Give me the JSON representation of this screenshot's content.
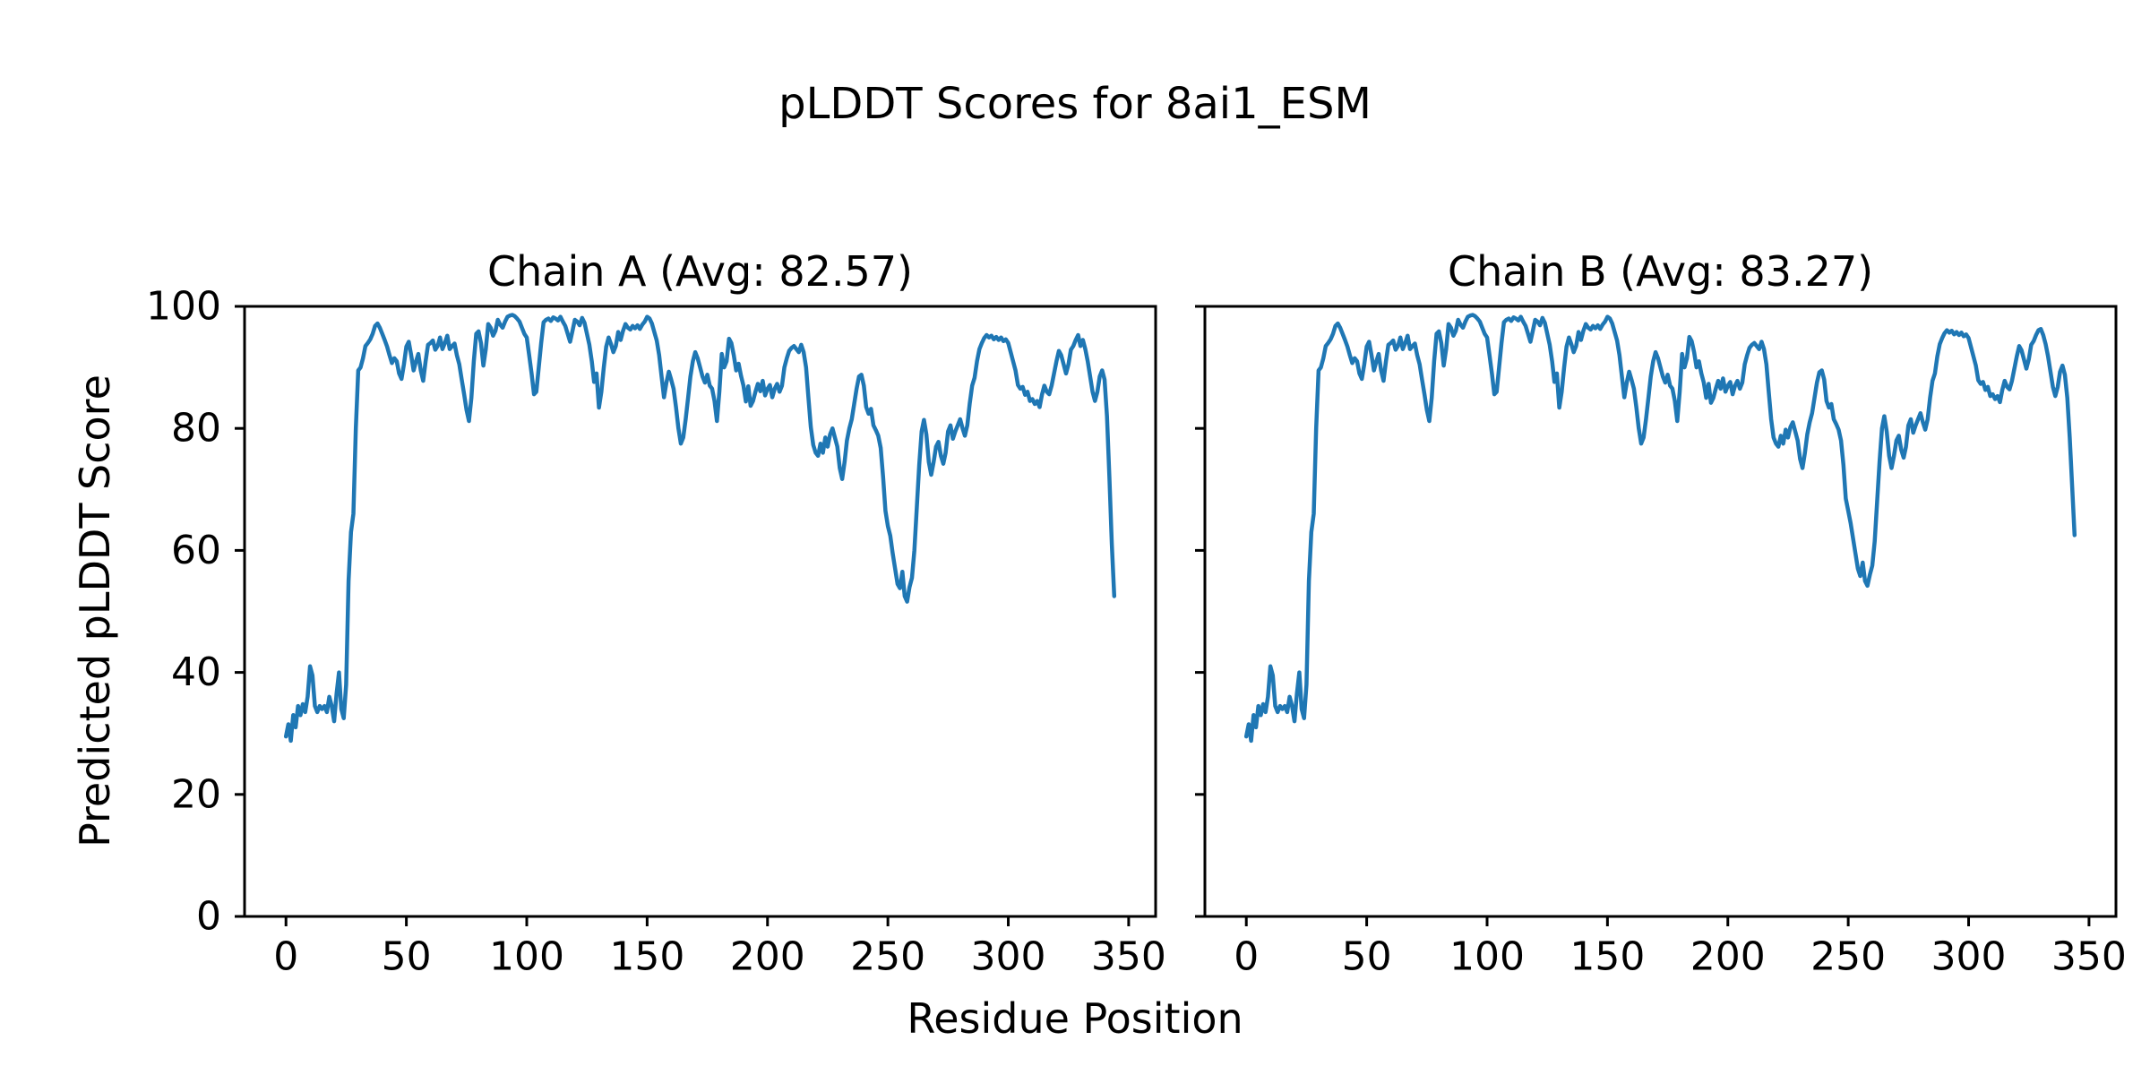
{
  "figure": {
    "suptitle": "pLDDT Scores for 8ai1_ESM",
    "xlabel": "Residue Position",
    "ylabel": "Predicted pLDDT Score",
    "colors": {
      "line": "#1f77b4",
      "text": "#000000",
      "spine": "#000000",
      "background": "#ffffff"
    }
  },
  "chart_data": {
    "type": "line",
    "title": "pLDDT Scores for 8ai1_ESM",
    "xlabel": "Residue Position",
    "ylabel": "Predicted pLDDT Score",
    "xlim": [
      -17.2,
      361.2
    ],
    "ylim": [
      0,
      100
    ],
    "xticks": [
      0,
      50,
      100,
      150,
      200,
      250,
      300,
      350
    ],
    "yticks": [
      0,
      20,
      40,
      60,
      80,
      100
    ],
    "grid": false,
    "legend": "none",
    "line_color": "#1f77b4",
    "subplots": [
      {
        "title": "Chain A (Avg: 82.57)",
        "chain": "A",
        "avg": 82.57,
        "x_start": 0,
        "values": [
          29.5,
          31.5,
          28.8,
          33,
          31,
          34.5,
          33,
          34.8,
          33.5,
          36,
          41,
          39.5,
          34.5,
          33.5,
          34.5,
          34,
          34.5,
          33.5,
          36,
          34.5,
          32,
          36.5,
          40,
          34,
          32.5,
          38,
          55,
          63,
          66,
          80,
          89.5,
          90,
          91.5,
          93.5,
          94,
          94.6,
          95.5,
          96.8,
          97.2,
          96.5,
          95.5,
          94.5,
          93.4,
          92,
          90.7,
          91.5,
          91,
          89,
          88.1,
          90.5,
          93.4,
          94.2,
          92,
          89.5,
          91,
          92.2,
          89.5,
          87.8,
          91,
          93.7,
          94,
          94.4,
          92.9,
          93.5,
          94.9,
          93,
          94,
          95.2,
          93,
          93.5,
          93.9,
          92,
          90.5,
          88,
          85.6,
          83,
          81.2,
          85,
          91,
          95.5,
          95.9,
          94,
          90.3,
          93,
          97.1,
          96.5,
          95.2,
          96,
          97.8,
          97,
          96.5,
          97.5,
          98.3,
          98.5,
          98.6,
          98.4,
          98,
          97.5,
          96.5,
          95.5,
          94.9,
          92,
          89,
          85.6,
          86,
          90,
          94,
          97.4,
          97.8,
          98,
          97.6,
          98.2,
          98,
          97.7,
          98.3,
          97.5,
          96.8,
          95.5,
          94.2,
          96,
          97.8,
          97.5,
          96.9,
          98.1,
          97.3,
          95.5,
          93.7,
          91,
          87.6,
          89,
          83.4,
          86,
          90,
          93.4,
          94.9,
          93.8,
          92.5,
          93.5,
          95.8,
          94.5,
          96,
          97.1,
          96.5,
          96.2,
          96.8,
          96.4,
          96.9,
          96.3,
          97,
          97.5,
          98.3,
          98,
          97.2,
          95.8,
          94.4,
          92,
          88.5,
          85.1,
          87.5,
          89.3,
          88,
          86.5,
          83.5,
          80,
          77.5,
          78.5,
          81.5,
          85,
          88.5,
          91,
          92.5,
          91.5,
          90,
          88.5,
          87.5,
          88.8,
          87,
          86.5,
          84.5,
          81.2,
          86,
          92.2,
          90,
          91,
          94.7,
          94,
          92,
          89.5,
          90.6,
          88.6,
          87,
          84.4,
          86.9,
          83.7,
          84.5,
          86,
          87.3,
          86.1,
          87.8,
          85.4,
          86.5,
          87.1,
          85.1,
          86.5,
          87.3,
          86,
          87,
          90,
          91.5,
          92.7,
          93.2,
          93.5,
          93,
          92.5,
          93.7,
          92.5,
          90,
          85.1,
          80.2,
          77.3,
          76,
          75.5,
          77.5,
          76,
          78.5,
          77,
          79,
          80,
          78.5,
          77,
          73.5,
          71.7,
          74.5,
          78,
          80,
          81.5,
          84,
          86.5,
          88.5,
          88.8,
          87,
          83.5,
          82.4,
          83.2,
          80.5,
          79.7,
          78.8,
          76.8,
          72,
          66.5,
          64,
          62.4,
          59.5,
          57,
          54.5,
          53.8,
          56.5,
          52.5,
          51.6,
          54,
          55.5,
          60,
          67,
          74,
          79.5,
          81.4,
          79,
          74.5,
          72.4,
          74.5,
          77,
          77.8,
          75.5,
          74.2,
          76,
          79.5,
          80.5,
          78.3,
          79.5,
          80.5,
          81.5,
          80,
          78.8,
          80.5,
          84.1,
          87,
          88.3,
          91,
          93,
          94,
          94.8,
          95.3,
          94.9,
          95.2,
          94.6,
          95,
          94.5,
          94.9,
          94.3,
          94.6,
          94,
          92.5,
          91,
          89.5,
          87.1,
          86.5,
          86.8,
          85.5,
          86,
          84.5,
          84.8,
          84,
          84.5,
          83.5,
          85.5,
          87,
          86,
          85.6,
          87,
          89,
          91,
          92.7,
          92,
          90.5,
          89,
          90.5,
          92.9,
          93.5,
          94.5,
          95.3,
          93.5,
          94.5,
          93,
          91,
          88.5,
          86,
          84.5,
          86,
          88.5,
          89.5,
          88,
          82,
          72,
          61,
          52.5
        ]
      },
      {
        "title": "Chain B (Avg: 83.27)",
        "chain": "B",
        "avg": 83.27,
        "x_start": 0,
        "values": [
          29.5,
          31.5,
          28.8,
          33,
          31,
          34.5,
          33,
          34.8,
          33.5,
          36,
          41,
          39.5,
          34.5,
          33.5,
          34.5,
          34,
          34.5,
          33.5,
          36,
          34.5,
          32,
          36.5,
          40,
          34,
          32.5,
          38,
          55,
          63,
          66,
          80,
          89.5,
          90,
          91.5,
          93.5,
          94,
          94.6,
          95.5,
          96.8,
          97.2,
          96.5,
          95.5,
          94.5,
          93.4,
          92,
          90.7,
          91.5,
          91,
          89,
          88.1,
          90.5,
          93.4,
          94.2,
          92,
          89.5,
          91,
          92.2,
          89.5,
          87.8,
          91,
          93.7,
          94,
          94.4,
          92.9,
          93.5,
          94.9,
          93,
          94,
          95.2,
          93,
          93.5,
          93.9,
          92,
          90.5,
          88,
          85.6,
          83,
          81.2,
          85,
          91,
          95.5,
          95.9,
          94,
          90.3,
          93,
          97.1,
          96.5,
          95.2,
          96,
          97.8,
          97,
          96.5,
          97.5,
          98.3,
          98.5,
          98.6,
          98.4,
          98,
          97.5,
          96.5,
          95.5,
          94.9,
          92,
          89,
          85.6,
          86,
          90,
          94,
          97.4,
          97.8,
          98,
          97.6,
          98.2,
          98,
          97.7,
          98.3,
          97.5,
          96.8,
          95.5,
          94.2,
          96,
          97.8,
          97.5,
          96.9,
          98.1,
          97.3,
          95.5,
          93.7,
          91,
          87.6,
          89,
          83.4,
          86,
          90,
          93.4,
          94.9,
          93.8,
          92.5,
          93.5,
          95.8,
          94.5,
          96,
          97.1,
          96.5,
          96.2,
          96.8,
          96.4,
          96.9,
          96.3,
          97,
          97.5,
          98.3,
          98,
          97.2,
          95.8,
          94.4,
          92,
          88.5,
          85.1,
          87.5,
          89.3,
          88,
          86.5,
          83.5,
          80,
          77.5,
          78.5,
          81.5,
          85,
          88.5,
          91,
          92.5,
          91.5,
          90,
          88.5,
          87.5,
          88.8,
          87,
          86.5,
          84.5,
          81.2,
          86,
          92.2,
          90,
          91.5,
          95,
          94.3,
          92.5,
          90,
          91,
          89,
          87.5,
          85,
          87.3,
          84.2,
          85,
          86.5,
          87.8,
          86.5,
          88.2,
          86,
          87,
          87.6,
          85.6,
          87,
          87.8,
          86.5,
          87.5,
          90.5,
          92,
          93.2,
          93.7,
          94,
          93.5,
          93,
          94.2,
          93,
          90.5,
          86,
          81.5,
          78.5,
          77.5,
          77,
          78.8,
          77.5,
          79.8,
          78.5,
          80.2,
          81,
          79.5,
          78,
          75,
          73.5,
          76,
          79,
          81,
          82.5,
          85,
          87.5,
          89.2,
          89.5,
          88,
          84.5,
          83.4,
          84,
          81.5,
          80.7,
          79.8,
          78,
          74,
          68.5,
          66.5,
          64.5,
          62,
          59.5,
          57,
          55.8,
          58,
          55,
          54.2,
          56,
          57.5,
          61.5,
          68,
          74.5,
          80,
          82,
          79.5,
          75.5,
          73.5,
          75.5,
          78,
          78.8,
          76.5,
          75.2,
          77,
          80.5,
          81.5,
          79.3,
          80.5,
          81.5,
          82.5,
          81,
          79.8,
          81.5,
          85,
          87.8,
          89,
          91.8,
          93.8,
          94.8,
          95.6,
          96.1,
          95.7,
          96,
          95.4,
          95.8,
          95.3,
          95.7,
          95.1,
          95.4,
          94.8,
          93.3,
          91.8,
          90.3,
          87.9,
          87.3,
          87.6,
          86.3,
          86.8,
          85.3,
          85.6,
          84.8,
          85.3,
          84.3,
          86.3,
          87.8,
          86.8,
          86.4,
          87.8,
          89.8,
          91.8,
          93.5,
          92.8,
          91.3,
          89.8,
          91.3,
          93.7,
          94.3,
          95.3,
          96.1,
          96.3,
          95.3,
          93.8,
          91.8,
          89.3,
          86.8,
          85.3,
          86.8,
          89.3,
          90.3,
          88.8,
          85,
          78.5,
          70.5,
          62.5
        ]
      }
    ]
  }
}
